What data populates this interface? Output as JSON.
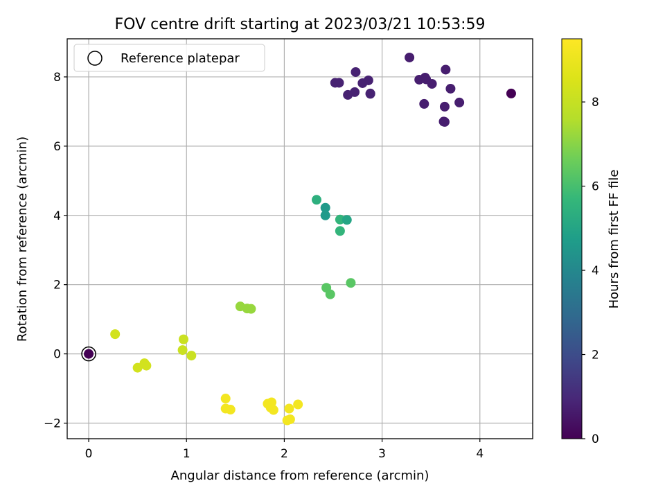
{
  "chart_data": {
    "type": "scatter",
    "title": "FOV centre drift starting at 2023/03/21 10:53:59",
    "xlabel": "Angular distance from reference (arcmin)",
    "ylabel": "Rotation from reference (arcmin)",
    "xlim": [
      -0.22,
      4.54
    ],
    "ylim": [
      -2.45,
      9.1
    ],
    "xticks": [
      0,
      1,
      2,
      3,
      4
    ],
    "yticks": [
      -2,
      0,
      2,
      4,
      6,
      8
    ],
    "grid": true,
    "legend": {
      "label": "Reference platepar",
      "placement": "top-left"
    },
    "colorbar": {
      "label": "Hours from first FF file",
      "colormap": "viridis",
      "range": [
        0,
        9.5
      ],
      "ticks": [
        0,
        2,
        4,
        6,
        8
      ]
    },
    "reference_point": {
      "x": 0,
      "y": 0
    },
    "points": [
      {
        "x": 0.0,
        "y": 0.0,
        "hours": 0.0
      },
      {
        "x": 4.32,
        "y": 7.52,
        "hours": 0.0
      },
      {
        "x": 3.28,
        "y": 8.56,
        "hours": 0.7
      },
      {
        "x": 3.38,
        "y": 7.92,
        "hours": 0.7
      },
      {
        "x": 3.44,
        "y": 7.98,
        "hours": 0.7
      },
      {
        "x": 3.45,
        "y": 7.93,
        "hours": 0.7
      },
      {
        "x": 3.51,
        "y": 7.8,
        "hours": 0.7
      },
      {
        "x": 3.43,
        "y": 7.22,
        "hours": 0.7
      },
      {
        "x": 3.65,
        "y": 8.21,
        "hours": 0.7
      },
      {
        "x": 3.7,
        "y": 7.66,
        "hours": 0.7
      },
      {
        "x": 3.64,
        "y": 7.14,
        "hours": 0.7
      },
      {
        "x": 3.79,
        "y": 7.26,
        "hours": 0.7
      },
      {
        "x": 3.63,
        "y": 6.71,
        "hours": 0.7
      },
      {
        "x": 3.64,
        "y": 6.7,
        "hours": 0.7
      },
      {
        "x": 2.52,
        "y": 7.83,
        "hours": 0.8
      },
      {
        "x": 2.56,
        "y": 7.83,
        "hours": 0.8
      },
      {
        "x": 2.65,
        "y": 7.48,
        "hours": 0.8
      },
      {
        "x": 2.72,
        "y": 7.56,
        "hours": 0.8
      },
      {
        "x": 2.73,
        "y": 8.14,
        "hours": 0.8
      },
      {
        "x": 2.8,
        "y": 7.82,
        "hours": 0.8
      },
      {
        "x": 2.86,
        "y": 7.9,
        "hours": 0.8
      },
      {
        "x": 2.88,
        "y": 7.52,
        "hours": 0.8
      },
      {
        "x": 2.88,
        "y": 7.51,
        "hours": 0.8
      },
      {
        "x": 2.33,
        "y": 4.45,
        "hours": 5.4
      },
      {
        "x": 2.42,
        "y": 4.22,
        "hours": 4.6
      },
      {
        "x": 2.42,
        "y": 4.0,
        "hours": 4.6
      },
      {
        "x": 2.57,
        "y": 3.88,
        "hours": 5.6
      },
      {
        "x": 2.64,
        "y": 3.87,
        "hours": 5.0
      },
      {
        "x": 2.57,
        "y": 3.55,
        "hours": 5.6
      },
      {
        "x": 2.43,
        "y": 1.91,
        "hours": 6.3
      },
      {
        "x": 2.47,
        "y": 1.72,
        "hours": 6.3
      },
      {
        "x": 2.68,
        "y": 2.05,
        "hours": 6.3
      },
      {
        "x": 1.55,
        "y": 1.37,
        "hours": 7.2
      },
      {
        "x": 1.62,
        "y": 1.31,
        "hours": 7.2
      },
      {
        "x": 1.66,
        "y": 1.3,
        "hours": 7.2
      },
      {
        "x": 0.27,
        "y": 0.57,
        "hours": 8.3
      },
      {
        "x": 0.97,
        "y": 0.42,
        "hours": 8.1
      },
      {
        "x": 0.96,
        "y": 0.11,
        "hours": 8.1
      },
      {
        "x": 1.05,
        "y": -0.05,
        "hours": 8.1
      },
      {
        "x": 0.57,
        "y": -0.27,
        "hours": 8.3
      },
      {
        "x": 0.59,
        "y": -0.34,
        "hours": 8.3
      },
      {
        "x": 0.5,
        "y": -0.4,
        "hours": 8.3
      },
      {
        "x": 1.4,
        "y": -1.29,
        "hours": 9.2
      },
      {
        "x": 1.4,
        "y": -1.58,
        "hours": 9.2
      },
      {
        "x": 1.45,
        "y": -1.61,
        "hours": 9.2
      },
      {
        "x": 1.83,
        "y": -1.44,
        "hours": 9.2
      },
      {
        "x": 1.87,
        "y": -1.4,
        "hours": 9.2
      },
      {
        "x": 1.86,
        "y": -1.55,
        "hours": 9.2
      },
      {
        "x": 1.89,
        "y": -1.62,
        "hours": 9.2
      },
      {
        "x": 2.14,
        "y": -1.46,
        "hours": 9.2
      },
      {
        "x": 2.05,
        "y": -1.58,
        "hours": 9.2
      },
      {
        "x": 2.03,
        "y": -1.92,
        "hours": 9.2
      },
      {
        "x": 2.06,
        "y": -1.89,
        "hours": 9.2
      }
    ]
  }
}
